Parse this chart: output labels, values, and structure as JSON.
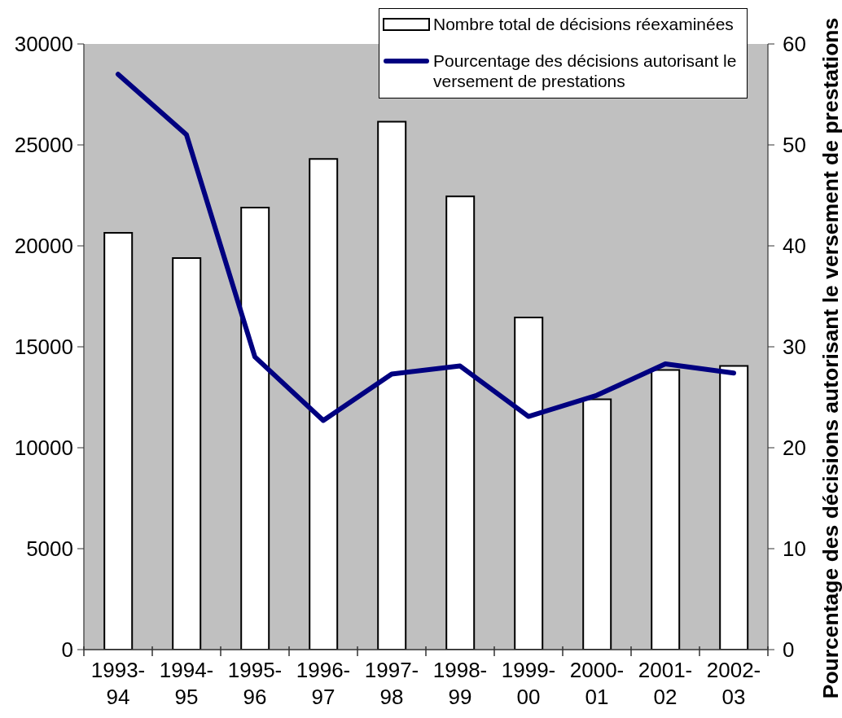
{
  "chart_data": {
    "type": "bar",
    "categories": [
      "1993-94",
      "1994-95",
      "1995-96",
      "1996-97",
      "1997-98",
      "1998-99",
      "1999-00",
      "2000-01",
      "2001-02",
      "2002-03"
    ],
    "series": [
      {
        "name": "Nombre total de décisions réexaminées",
        "color": "#ffffff",
        "values": [
          20650,
          19400,
          21900,
          24300,
          26150,
          22450,
          16450,
          12400,
          13850,
          14050
        ]
      },
      {
        "name": "Pourcentage des décisions autorisant le versement de prestations",
        "type": "line",
        "axis": "y2",
        "color": "#000080",
        "values": [
          57,
          51,
          29,
          22.7,
          27.3,
          28.1,
          23.1,
          25.2,
          28.3,
          27.4
        ]
      }
    ],
    "ylim": [
      0,
      30000
    ],
    "yticks": [
      0,
      5000,
      10000,
      15000,
      20000,
      25000,
      30000
    ],
    "y2lim": [
      0,
      60
    ],
    "y2ticks": [
      0,
      10,
      20,
      30,
      40,
      50,
      60
    ],
    "y2label": "Pourcentage des décisions autorisant le versement de prestations",
    "legend": "top right"
  }
}
